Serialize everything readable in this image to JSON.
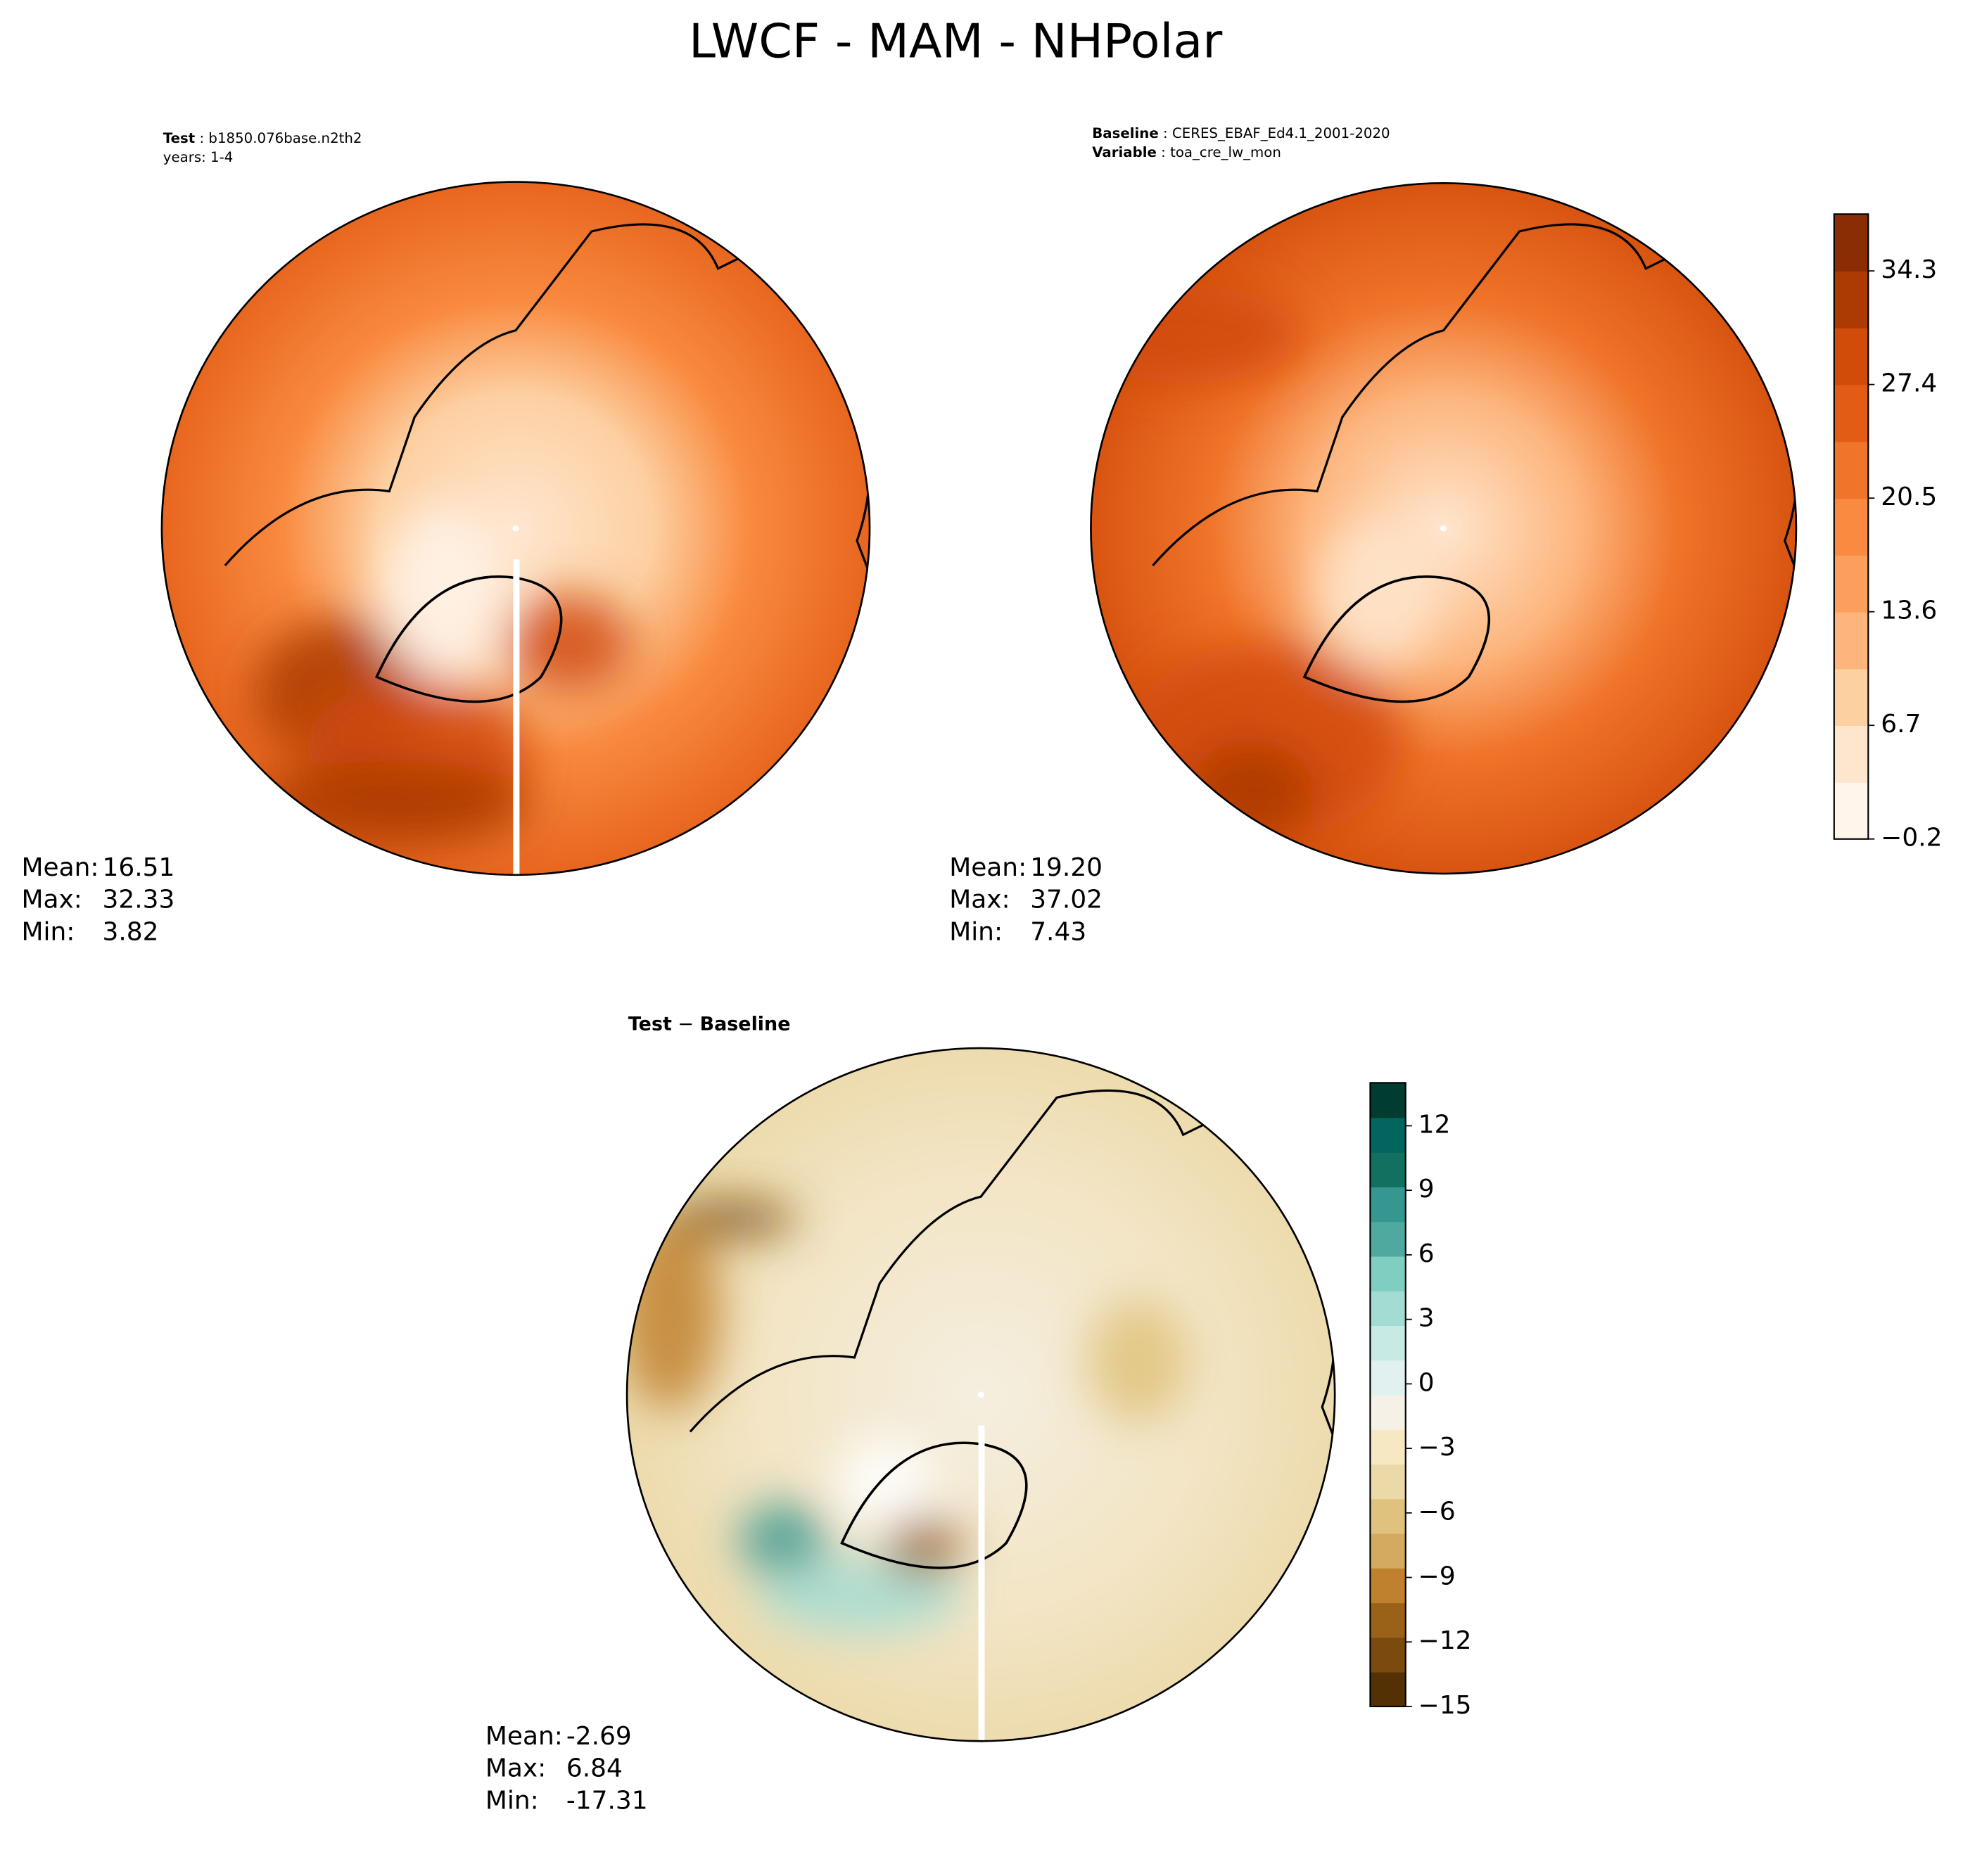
{
  "title": "LWCF - MAM - NHPolar",
  "panels": [
    {
      "subtitle": [
        [
          {
            "text": "Test",
            "bold": true
          },
          {
            "text": " : b1850.076base.n2th2"
          }
        ],
        [
          {
            "text": "years: 1-4"
          }
        ]
      ],
      "stats": [
        {
          "label": "Mean:",
          "value": 16.51
        },
        {
          "label": "Max:",
          "value": 32.33
        },
        {
          "label": "Min:",
          "value": 3.82
        }
      ]
    },
    {
      "subtitle": [
        [
          {
            "text": "Baseline",
            "bold": true
          },
          {
            "text": " : CERES_EBAF_Ed4.1_2001-2020"
          }
        ],
        [
          {
            "text": "Variable",
            "bold": true
          },
          {
            "text": " : toa_cre_lw_mon"
          }
        ]
      ],
      "stats": [
        {
          "label": "Mean:",
          "value": 19.2,
          "value_label": "19.20"
        },
        {
          "label": "Max:",
          "value": 37.02
        },
        {
          "label": "Min:",
          "value": 7.43
        }
      ]
    },
    {
      "subtitle": [
        [
          {
            "text": "Test",
            "bold": true
          },
          {
            "text": " − "
          },
          {
            "text": "Baseline",
            "bold": true
          }
        ]
      ],
      "stats": [
        {
          "label": "Mean:",
          "value": -2.69
        },
        {
          "label": "Max:",
          "value": 6.84
        },
        {
          "label": "Min:",
          "value": -17.31
        }
      ]
    }
  ],
  "colorbars": [
    {
      "range": [
        -0.2,
        37.75
      ],
      "ticks": [
        {
          "value": -0.2,
          "label": "−0.2"
        },
        6.7,
        13.6,
        20.5,
        27.4,
        34.3
      ],
      "colors": [
        "#fff5eb",
        "#fee6ce",
        "#fdd0a2",
        "#fdb57d",
        "#fd9f5c",
        "#f98a3f",
        "#f0742a",
        "#e35c16",
        "#d14b09",
        "#ab3a03",
        "#8a2d04"
      ]
    },
    {
      "range": [
        -15,
        14
      ],
      "ticks": [
        {
          "value": -15,
          "label": "−15"
        },
        {
          "value": -12,
          "label": "−12"
        },
        {
          "value": -9,
          "label": "−9"
        },
        {
          "value": -6,
          "label": "−6"
        },
        {
          "value": -3,
          "label": "−3"
        },
        0,
        3,
        6,
        9,
        12
      ],
      "colors": [
        "#543005",
        "#7a4a0e",
        "#9a6218",
        "#bf812d",
        "#d4aa60",
        "#dfc27d",
        "#ecd9a8",
        "#f6e8c3",
        "#f5f1e6",
        "#e0f1ef",
        "#c7eae5",
        "#a2dcd2",
        "#80cdc1",
        "#4fa99e",
        "#35978f",
        "#11705f",
        "#01665e",
        "#003c30"
      ]
    }
  ]
}
